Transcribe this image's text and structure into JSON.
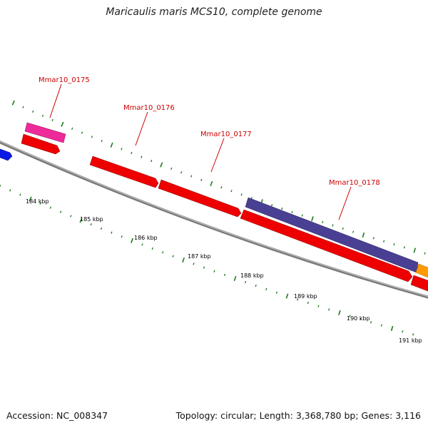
{
  "title": "Maricaulis maris MCS10, complete genome",
  "footer": {
    "accession": "Accession: NC_008347",
    "summary": "Topology: circular; Length: 3,368,780 bp; Genes: 3,116"
  },
  "colors": {
    "backbone": "#7a7a7a",
    "tick": "#1e7a1e",
    "label": "#cc0000",
    "cds": "#ee0000",
    "pink": "#ee2a9a",
    "purple": "#4a4093",
    "blue": "#0a1ae6",
    "orange": "#ff9a00"
  },
  "genes": [
    {
      "id": "Mmar10_0175",
      "label": "Mmar10_0175"
    },
    {
      "id": "Mmar10_0176",
      "label": "Mmar10_0176"
    },
    {
      "id": "Mmar10_0177",
      "label": "Mmar10_0177"
    },
    {
      "id": "Mmar10_0178",
      "label": "Mmar10_0178"
    }
  ],
  "kbp_labels": [
    "184 kbp",
    "185 kbp",
    "186 kbp",
    "187 kbp",
    "188 kbp",
    "189 kbp",
    "190 kbp",
    "191 kbp"
  ]
}
